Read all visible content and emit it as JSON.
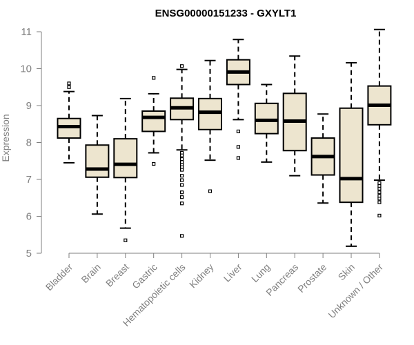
{
  "chart_data": {
    "type": "box",
    "title": "ENSG00000151233 - GXYLT1",
    "xlabel": "",
    "ylabel": "Expression",
    "ylim": [
      5,
      11
    ],
    "yticks": [
      5,
      6,
      7,
      8,
      9,
      10,
      11
    ],
    "grid": false,
    "legend": "none",
    "colors": {
      "box_fill": "#ede5cf",
      "stroke": "#000000",
      "axis_text": "#7f7f7f"
    },
    "categories": [
      "Bladder",
      "Brain",
      "Breast",
      "Gastric",
      "Hematopoietic cells",
      "Kidney",
      "Liver",
      "Lung",
      "Pancreas",
      "Prostate",
      "Skin",
      "Unknown / Other"
    ],
    "boxes": [
      {
        "category": "Bladder",
        "whisker_low": 7.45,
        "q1": 8.12,
        "median": 8.43,
        "q3": 8.65,
        "whisker_high": 9.38,
        "outliers": [
          9.5,
          9.6
        ]
      },
      {
        "category": "Brain",
        "whisker_low": 6.06,
        "q1": 7.06,
        "median": 7.28,
        "q3": 7.93,
        "whisker_high": 8.73,
        "outliers": []
      },
      {
        "category": "Breast",
        "whisker_low": 5.68,
        "q1": 7.05,
        "median": 7.41,
        "q3": 8.1,
        "whisker_high": 9.19,
        "outliers": [
          5.35
        ]
      },
      {
        "category": "Gastric",
        "whisker_low": 7.72,
        "q1": 8.3,
        "median": 8.68,
        "q3": 8.85,
        "whisker_high": 9.32,
        "outliers": [
          9.75,
          7.42
        ]
      },
      {
        "category": "Hematopoietic cells",
        "whisker_low": 7.8,
        "q1": 8.62,
        "median": 8.94,
        "q3": 9.2,
        "whisker_high": 9.98,
        "outliers": [
          10.07,
          7.72,
          7.65,
          7.55,
          7.47,
          7.4,
          7.33,
          7.26,
          7.1,
          6.98,
          6.85,
          6.65,
          6.52,
          6.35,
          5.47
        ]
      },
      {
        "category": "Kidney",
        "whisker_low": 7.52,
        "q1": 8.35,
        "median": 8.82,
        "q3": 9.19,
        "whisker_high": 10.22,
        "outliers": [
          6.68
        ]
      },
      {
        "category": "Liver",
        "whisker_low": 8.62,
        "q1": 9.57,
        "median": 9.91,
        "q3": 10.24,
        "whisker_high": 10.79,
        "outliers": [
          8.3,
          7.88,
          7.58
        ]
      },
      {
        "category": "Lung",
        "whisker_low": 7.47,
        "q1": 8.24,
        "median": 8.6,
        "q3": 9.06,
        "whisker_high": 9.57,
        "outliers": []
      },
      {
        "category": "Pancreas",
        "whisker_low": 7.1,
        "q1": 7.78,
        "median": 8.58,
        "q3": 9.33,
        "whisker_high": 10.34,
        "outliers": []
      },
      {
        "category": "Prostate",
        "whisker_low": 6.36,
        "q1": 7.12,
        "median": 7.62,
        "q3": 8.12,
        "whisker_high": 8.77,
        "outliers": []
      },
      {
        "category": "Skin",
        "whisker_low": 5.19,
        "q1": 6.38,
        "median": 7.02,
        "q3": 8.93,
        "whisker_high": 10.16,
        "outliers": []
      },
      {
        "category": "Unknown / Other",
        "whisker_low": 6.98,
        "q1": 8.48,
        "median": 9.01,
        "q3": 9.53,
        "whisker_high": 11.06,
        "outliers": [
          6.9,
          6.82,
          6.75,
          6.65,
          6.55,
          6.48,
          6.38,
          6.02
        ]
      }
    ]
  }
}
